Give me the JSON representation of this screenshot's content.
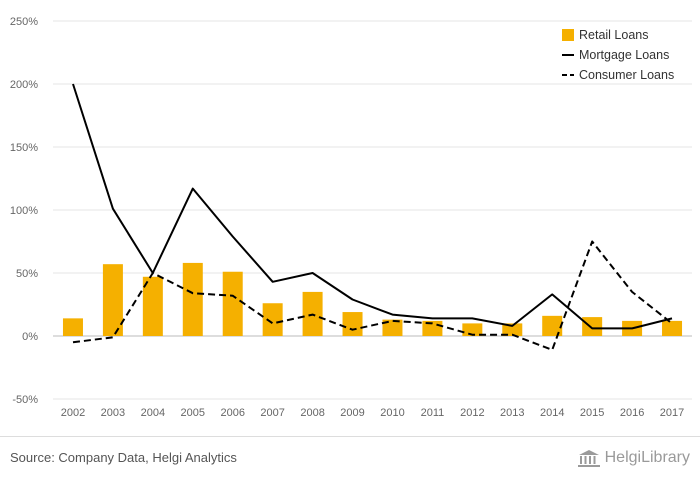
{
  "chart_data": {
    "type": "bar+line",
    "categories": [
      "2002",
      "2003",
      "2004",
      "2005",
      "2006",
      "2007",
      "2008",
      "2009",
      "2010",
      "2011",
      "2012",
      "2013",
      "2014",
      "2015",
      "2016",
      "2017"
    ],
    "series": [
      {
        "name": "Retail Loans",
        "type": "bar",
        "color": "#F5B000",
        "values": [
          14,
          57,
          47,
          58,
          51,
          26,
          35,
          19,
          13,
          12,
          10,
          10,
          16,
          15,
          12,
          12
        ]
      },
      {
        "name": "Mortgage Loans",
        "type": "line",
        "style": "solid",
        "color": "#000000",
        "values": [
          200,
          101,
          50,
          117,
          79,
          43,
          50,
          29,
          17,
          14,
          14,
          8,
          33,
          6,
          6,
          14
        ]
      },
      {
        "name": "Consumer Loans",
        "type": "line",
        "style": "dashed",
        "color": "#000000",
        "values": [
          -5,
          -1,
          50,
          34,
          32,
          10,
          17,
          5,
          12,
          10,
          1,
          1,
          -11,
          75,
          35,
          10
        ]
      }
    ],
    "yticks": [
      -50,
      0,
      50,
      100,
      150,
      200,
      250
    ],
    "ytick_labels": [
      "-50%",
      "0%",
      "50%",
      "100%",
      "150%",
      "200%",
      "250%"
    ],
    "ylim": [
      -50,
      250
    ],
    "legend_position": "top-right",
    "grid": true
  },
  "footer": {
    "source": "Source: Company Data, Helgi Analytics",
    "logo": "HelgiLibrary"
  },
  "colors": {
    "bar": "#F5B000",
    "grid": "#e6e6e6",
    "zero": "#bbbbbb"
  }
}
